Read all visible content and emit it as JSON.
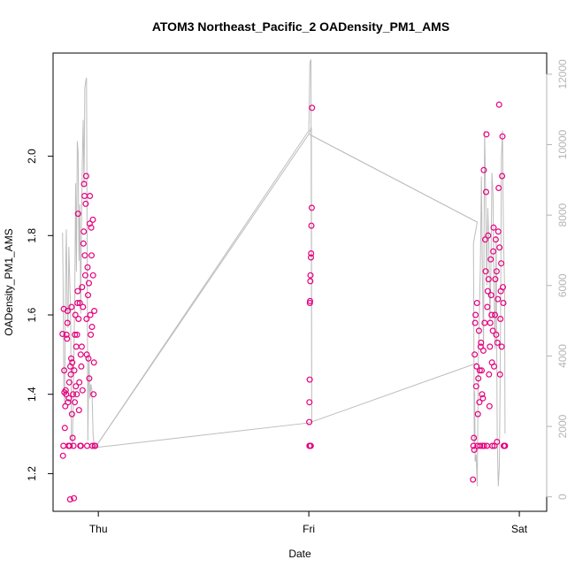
{
  "chart_data": {
    "type": "scatter",
    "title": "ATOM3 Northeast_Pacific_2 OADensity_PM1_AMS",
    "xlabel": "Date",
    "ylabel": "OADensity_PM1_AMS",
    "x_ticks": [
      {
        "value": 0.0,
        "label": "Thu"
      },
      {
        "value": 1.0,
        "label": "Fri"
      },
      {
        "value": 2.0,
        "label": "Sat"
      }
    ],
    "y_ticks": [
      1.2,
      1.4,
      1.6,
      1.8,
      2.0
    ],
    "y2_ticks": [
      0,
      2000,
      4000,
      6000,
      8000,
      10000,
      12000
    ],
    "xlim": [
      -0.215,
      2.13
    ],
    "ylim": [
      1.105,
      2.26
    ],
    "y2lim": [
      -410,
      12600
    ],
    "marker_color": "#e6007e",
    "line_color": "#bdbdbd",
    "series": [
      {
        "values": [
          [
            -0.17,
            1.552
          ],
          [
            -0.168,
            1.245
          ],
          [
            -0.166,
            1.27
          ],
          [
            -0.164,
            1.615
          ],
          [
            -0.162,
            1.46
          ],
          [
            -0.161,
            1.405
          ],
          [
            -0.159,
            1.315
          ],
          [
            -0.157,
            1.37
          ],
          [
            -0.155,
            1.41
          ],
          [
            -0.153,
            1.4
          ],
          [
            -0.151,
            1.55
          ],
          [
            -0.149,
            1.54
          ],
          [
            -0.147,
            1.58
          ],
          [
            -0.146,
            1.61
          ],
          [
            -0.144,
            1.38
          ],
          [
            -0.142,
            1.27
          ],
          [
            -0.14,
            1.39
          ],
          [
            -0.138,
            1.43
          ],
          [
            -0.136,
            1.27
          ],
          [
            -0.134,
            1.135
          ],
          [
            -0.133,
            1.47
          ],
          [
            -0.131,
            1.45
          ],
          [
            -0.129,
            1.49
          ],
          [
            -0.127,
            1.62
          ],
          [
            -0.125,
            1.35
          ],
          [
            -0.124,
            1.48
          ],
          [
            -0.122,
            1.29
          ],
          [
            -0.12,
            1.4
          ],
          [
            -0.118,
            1.27
          ],
          [
            -0.116,
            1.138
          ],
          [
            -0.114,
            1.46
          ],
          [
            -0.112,
            1.38
          ],
          [
            -0.111,
            1.55
          ],
          [
            -0.109,
            1.6
          ],
          [
            -0.107,
            1.42
          ],
          [
            -0.105,
            1.52
          ],
          [
            -0.103,
            1.4
          ],
          [
            -0.101,
            1.55
          ],
          [
            -0.099,
            1.63
          ],
          [
            -0.098,
            1.66
          ],
          [
            -0.096,
            1.855
          ],
          [
            -0.094,
            1.59
          ],
          [
            -0.092,
            1.36
          ],
          [
            -0.09,
            1.43
          ],
          [
            -0.088,
            1.63
          ],
          [
            -0.086,
            1.27
          ],
          [
            -0.084,
            1.5
          ],
          [
            -0.083,
            1.27
          ],
          [
            -0.081,
            1.47
          ],
          [
            -0.079,
            1.52
          ],
          [
            -0.077,
            1.67
          ],
          [
            -0.075,
            1.41
          ],
          [
            -0.073,
            1.62
          ],
          [
            -0.071,
            1.78
          ],
          [
            -0.069,
            1.81
          ],
          [
            -0.068,
            1.93
          ],
          [
            -0.066,
            1.9
          ],
          [
            -0.064,
            1.75
          ],
          [
            -0.062,
            1.7
          ],
          [
            -0.06,
            1.88
          ],
          [
            -0.058,
            1.95
          ],
          [
            -0.056,
            1.59
          ],
          [
            -0.055,
            1.5
          ],
          [
            -0.053,
            1.27
          ],
          [
            -0.051,
            1.72
          ],
          [
            -0.049,
            1.65
          ],
          [
            -0.047,
            1.49
          ],
          [
            -0.045,
            1.68
          ],
          [
            -0.043,
            1.44
          ],
          [
            -0.041,
            1.83
          ],
          [
            -0.04,
            1.9
          ],
          [
            -0.038,
            1.6
          ],
          [
            -0.036,
            1.55
          ],
          [
            -0.034,
            1.82
          ],
          [
            -0.032,
            1.75
          ],
          [
            -0.03,
            1.57
          ],
          [
            -0.028,
            1.27
          ],
          [
            -0.026,
            1.84
          ],
          [
            -0.025,
            1.7
          ],
          [
            -0.023,
            1.4
          ],
          [
            -0.021,
            1.48
          ],
          [
            -0.019,
            1.61
          ],
          [
            -0.017,
            1.27
          ],
          [
            -0.015,
            1.27
          ],
          [
            1.015,
            2.122
          ],
          [
            1.014,
            1.87
          ],
          [
            1.012,
            1.825
          ],
          [
            1.011,
            1.755
          ],
          [
            1.01,
            1.745
          ],
          [
            1.008,
            1.7
          ],
          [
            1.007,
            1.685
          ],
          [
            1.006,
            1.635
          ],
          [
            1.005,
            1.63
          ],
          [
            1.004,
            1.437
          ],
          [
            1.003,
            1.38
          ],
          [
            1.002,
            1.33
          ],
          [
            1.003,
            1.27
          ],
          [
            1.006,
            1.27
          ],
          [
            1.009,
            1.27
          ],
          [
            1.78,
            1.185
          ],
          [
            1.782,
            1.27
          ],
          [
            1.784,
            1.29
          ],
          [
            1.786,
            1.26
          ],
          [
            1.788,
            1.5
          ],
          [
            1.79,
            1.58
          ],
          [
            1.792,
            1.6
          ],
          [
            1.795,
            1.42
          ],
          [
            1.797,
            1.47
          ],
          [
            1.799,
            1.63
          ],
          [
            1.801,
            1.27
          ],
          [
            1.803,
            1.35
          ],
          [
            1.805,
            1.44
          ],
          [
            1.808,
            1.56
          ],
          [
            1.81,
            1.38
          ],
          [
            1.812,
            1.46
          ],
          [
            1.814,
            1.27
          ],
          [
            1.816,
            1.52
          ],
          [
            1.818,
            1.53
          ],
          [
            1.821,
            1.46
          ],
          [
            1.823,
            1.4
          ],
          [
            1.825,
            1.27
          ],
          [
            1.827,
            1.39
          ],
          [
            1.829,
            1.51
          ],
          [
            1.831,
            1.965
          ],
          [
            1.833,
            1.27
          ],
          [
            1.835,
            1.58
          ],
          [
            1.838,
            1.79
          ],
          [
            1.84,
            1.71
          ],
          [
            1.842,
            1.91
          ],
          [
            1.844,
            2.055
          ],
          [
            1.846,
            1.27
          ],
          [
            1.848,
            1.62
          ],
          [
            1.85,
            1.66
          ],
          [
            1.852,
            1.8
          ],
          [
            1.854,
            1.69
          ],
          [
            1.856,
            1.45
          ],
          [
            1.858,
            1.37
          ],
          [
            1.86,
            1.52
          ],
          [
            1.862,
            1.58
          ],
          [
            1.864,
            1.74
          ],
          [
            1.866,
            1.65
          ],
          [
            1.868,
            1.6
          ],
          [
            1.87,
            1.48
          ],
          [
            1.872,
            1.27
          ],
          [
            1.874,
            1.56
          ],
          [
            1.876,
            1.76
          ],
          [
            1.878,
            1.82
          ],
          [
            1.88,
            1.47
          ],
          [
            1.882,
            1.27
          ],
          [
            1.884,
            1.6
          ],
          [
            1.886,
            1.69
          ],
          [
            1.888,
            1.79
          ],
          [
            1.89,
            1.55
          ],
          [
            1.892,
            1.71
          ],
          [
            1.894,
            1.28
          ],
          [
            1.896,
            1.53
          ],
          [
            1.898,
            1.64
          ],
          [
            1.9,
            1.81
          ],
          [
            1.902,
            1.92
          ],
          [
            1.904,
            2.13
          ],
          [
            1.906,
            1.77
          ],
          [
            1.908,
            1.45
          ],
          [
            1.91,
            1.59
          ],
          [
            1.912,
            1.66
          ],
          [
            1.914,
            1.73
          ],
          [
            1.916,
            1.52
          ],
          [
            1.918,
            1.95
          ],
          [
            1.92,
            2.05
          ],
          [
            1.922,
            1.67
          ],
          [
            1.924,
            1.63
          ],
          [
            1.926,
            1.27
          ],
          [
            1.928,
            1.27
          ],
          [
            1.93,
            1.27
          ],
          [
            1.932,
            1.27
          ]
        ]
      },
      {
        "name": "",
        "axis": "right",
        "values": [
          [
            -0.17,
            7500
          ],
          [
            -0.168,
            6500
          ],
          [
            -0.164,
            3200
          ],
          [
            -0.16,
            2600
          ],
          [
            -0.156,
            6000
          ],
          [
            -0.152,
            7600
          ],
          [
            -0.148,
            5400
          ],
          [
            -0.144,
            4800
          ],
          [
            -0.14,
            7100
          ],
          [
            -0.136,
            6200
          ],
          [
            -0.132,
            5300
          ],
          [
            -0.128,
            1800
          ],
          [
            -0.124,
            1500
          ],
          [
            -0.12,
            2400
          ],
          [
            -0.116,
            4100
          ],
          [
            -0.112,
            5600
          ],
          [
            -0.108,
            8900
          ],
          [
            -0.104,
            6400
          ],
          [
            -0.1,
            10100
          ],
          [
            -0.096,
            9800
          ],
          [
            -0.092,
            6700
          ],
          [
            -0.088,
            8300
          ],
          [
            -0.084,
            5200
          ],
          [
            -0.08,
            7600
          ],
          [
            -0.076,
            9600
          ],
          [
            -0.072,
            10700
          ],
          [
            -0.068,
            8800
          ],
          [
            -0.064,
            11600
          ],
          [
            -0.06,
            11800
          ],
          [
            -0.056,
            11900
          ],
          [
            -0.05,
            1600
          ],
          [
            -0.045,
            4000
          ],
          [
            -0.04,
            2800
          ],
          [
            -0.035,
            3200
          ],
          [
            -0.03,
            3000
          ],
          [
            -0.025,
            1800
          ],
          [
            -0.02,
            1400
          ],
          [
            -0.015,
            1400
          ],
          [
            1.0,
            10400
          ],
          [
            1.005,
            12350
          ],
          [
            1.01,
            12400
          ],
          [
            1.014,
            2100
          ],
          [
            1.012,
            10500
          ],
          [
            1.0,
            10300
          ],
          [
            1.8,
            7800
          ],
          [
            1.782,
            7200
          ],
          [
            1.784,
            4500
          ],
          [
            1.786,
            1500
          ],
          [
            1.788,
            3000
          ],
          [
            1.79,
            1000
          ],
          [
            1.795,
            1200
          ],
          [
            1.8,
            300
          ],
          [
            1.805,
            3800
          ],
          [
            1.81,
            5200
          ],
          [
            1.815,
            6500
          ],
          [
            1.82,
            9100
          ],
          [
            1.825,
            6200
          ],
          [
            1.83,
            4200
          ],
          [
            1.835,
            10400
          ],
          [
            1.84,
            8600
          ],
          [
            1.845,
            6000
          ],
          [
            1.85,
            8200
          ],
          [
            1.855,
            7200
          ],
          [
            1.86,
            5000
          ],
          [
            1.865,
            6300
          ],
          [
            1.87,
            9200
          ],
          [
            1.875,
            8600
          ],
          [
            1.88,
            5800
          ],
          [
            1.885,
            4200
          ],
          [
            1.89,
            7400
          ],
          [
            1.895,
            1600
          ],
          [
            1.9,
            300
          ],
          [
            1.905,
            900
          ],
          [
            1.91,
            4200
          ],
          [
            1.915,
            9600
          ],
          [
            1.92,
            10400
          ],
          [
            1.925,
            7300
          ],
          [
            1.93,
            6000
          ],
          [
            1.932,
            1800
          ]
        ]
      }
    ],
    "line_segments": [
      [
        [
          -0.015,
          1400
        ],
        [
          1.0,
          2100
        ]
      ],
      [
        [
          -0.015,
          1400
        ],
        [
          1.0,
          10300
        ]
      ],
      [
        [
          1.0,
          10300
        ],
        [
          1.8,
          7800
        ]
      ],
      [
        [
          1.0,
          2100
        ],
        [
          1.8,
          3800
        ]
      ]
    ]
  }
}
